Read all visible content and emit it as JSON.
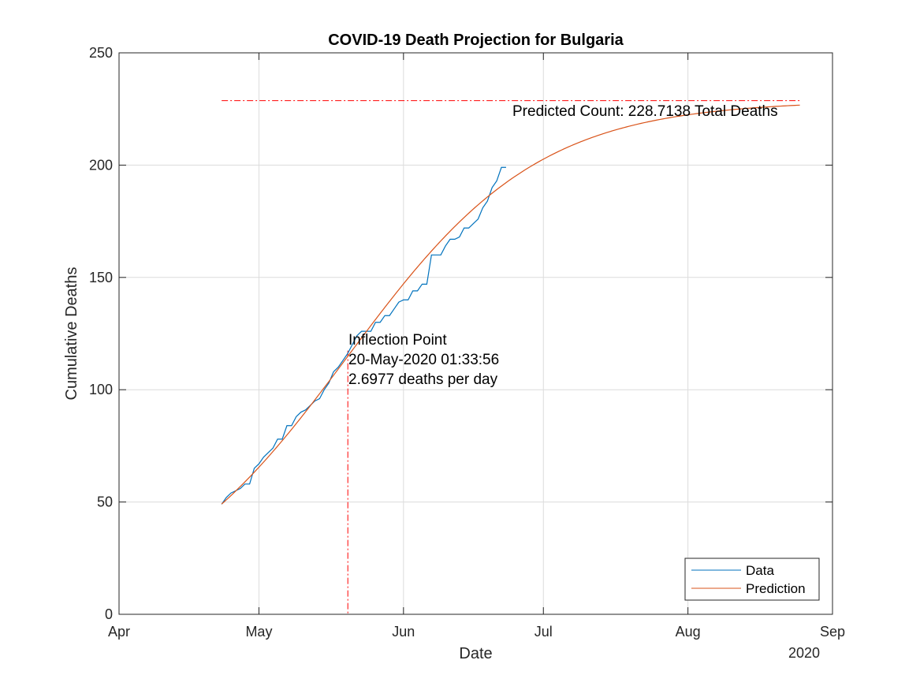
{
  "chart_data": {
    "type": "line",
    "title": "COVID-19 Death Projection for Bulgaria",
    "xlabel": "Date",
    "ylabel": "Cumulative Deaths",
    "x_secondary_label": "2020",
    "x_ticks": [
      "Apr",
      "May",
      "Jun",
      "Jul",
      "Aug",
      "Sep"
    ],
    "x_tick_dates": [
      "2020-04-01",
      "2020-05-01",
      "2020-06-01",
      "2020-07-01",
      "2020-08-01",
      "2020-09-01"
    ],
    "xlim": [
      "2020-04-01",
      "2020-09-01"
    ],
    "ylim": [
      0,
      250
    ],
    "y_ticks": [
      0,
      50,
      100,
      150,
      200,
      250
    ],
    "grid": true,
    "legend_position": "bottom-right",
    "series": [
      {
        "name": "Data",
        "color": "#0072BD",
        "x": [
          "2020-04-23",
          "2020-04-24",
          "2020-04-25",
          "2020-04-26",
          "2020-04-27",
          "2020-04-28",
          "2020-04-29",
          "2020-04-30",
          "2020-05-01",
          "2020-05-02",
          "2020-05-03",
          "2020-05-04",
          "2020-05-05",
          "2020-05-06",
          "2020-05-07",
          "2020-05-08",
          "2020-05-09",
          "2020-05-10",
          "2020-05-11",
          "2020-05-12",
          "2020-05-13",
          "2020-05-14",
          "2020-05-15",
          "2020-05-16",
          "2020-05-17",
          "2020-05-18",
          "2020-05-19",
          "2020-05-20",
          "2020-05-21",
          "2020-05-22",
          "2020-05-23",
          "2020-05-24",
          "2020-05-25",
          "2020-05-26",
          "2020-05-27",
          "2020-05-28",
          "2020-05-29",
          "2020-05-30",
          "2020-05-31",
          "2020-06-01",
          "2020-06-02",
          "2020-06-03",
          "2020-06-04",
          "2020-06-05",
          "2020-06-06",
          "2020-06-07",
          "2020-06-08",
          "2020-06-09",
          "2020-06-10",
          "2020-06-11",
          "2020-06-12",
          "2020-06-13",
          "2020-06-14",
          "2020-06-15",
          "2020-06-16",
          "2020-06-17",
          "2020-06-18",
          "2020-06-19",
          "2020-06-20",
          "2020-06-21",
          "2020-06-22",
          "2020-06-23"
        ],
        "y": [
          49,
          52,
          54,
          55,
          56,
          58,
          58,
          65,
          67,
          70,
          72,
          74,
          78,
          78,
          84,
          84,
          88,
          90,
          91,
          93,
          95,
          96,
          100,
          103,
          108,
          110,
          113,
          116,
          120,
          124,
          126,
          126,
          126,
          130,
          130,
          133,
          133,
          136,
          139,
          140,
          140,
          144,
          144,
          147,
          147,
          160,
          160,
          160,
          164,
          167,
          167,
          168,
          172,
          172,
          174,
          176,
          181,
          184,
          190,
          193,
          199,
          199
        ]
      },
      {
        "name": "Prediction",
        "color": "#D95319",
        "logistic": {
          "asymptote": 228.7138,
          "baseline": 1.1,
          "inflection": "2020-05-20T01:33:56",
          "scale_days": 20.5
        },
        "x_range": [
          "2020-04-23",
          "2020-08-25"
        ]
      }
    ],
    "asymptote": {
      "value": 228.7138,
      "color": "#FF0000",
      "x_range": [
        "2020-04-23",
        "2020-08-25"
      ]
    },
    "inflection": {
      "date": "2020-05-20T01:33:56",
      "value": 117.4,
      "color": "#FF0000"
    },
    "annotations": {
      "predicted": "Predicted Count: 228.7138 Total Deaths",
      "inflection_title": "Inflection Point",
      "inflection_date": "20-May-2020 01:33:56",
      "inflection_rate": "2.6977 deaths per day"
    }
  }
}
